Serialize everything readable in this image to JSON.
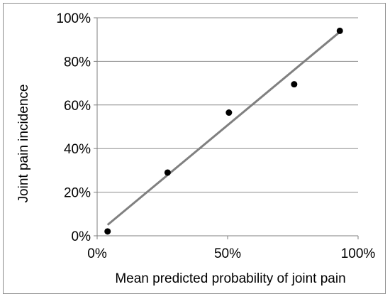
{
  "chart_data": {
    "type": "scatter",
    "title": "",
    "xlabel": "Mean predicted probability of joint pain",
    "ylabel": "Joint pain incidence",
    "xlim": [
      0,
      100
    ],
    "ylim": [
      0,
      100
    ],
    "x_ticks": [
      0,
      50,
      100
    ],
    "x_tick_labels": [
      "0%",
      "50%",
      "100%"
    ],
    "y_ticks": [
      0,
      20,
      40,
      60,
      80,
      100
    ],
    "y_tick_labels": [
      "0%",
      "20%",
      "40%",
      "60%",
      "80%",
      "100%"
    ],
    "grid": "horizontal",
    "legend": "none",
    "points": [
      {
        "x": 4,
        "y": 2
      },
      {
        "x": 27,
        "y": 29
      },
      {
        "x": 50.5,
        "y": 56.5
      },
      {
        "x": 75.5,
        "y": 69.5
      },
      {
        "x": 93,
        "y": 94
      }
    ],
    "trendline": {
      "type": "linear",
      "start": {
        "x": 4,
        "y": 5
      },
      "end": {
        "x": 93,
        "y": 93.5
      }
    },
    "colors": {
      "points": "#000000",
      "trendline": "#808080",
      "grid": "#8c8c8c",
      "axis": "#7f7f7f",
      "border": "#8c8c8c"
    }
  }
}
